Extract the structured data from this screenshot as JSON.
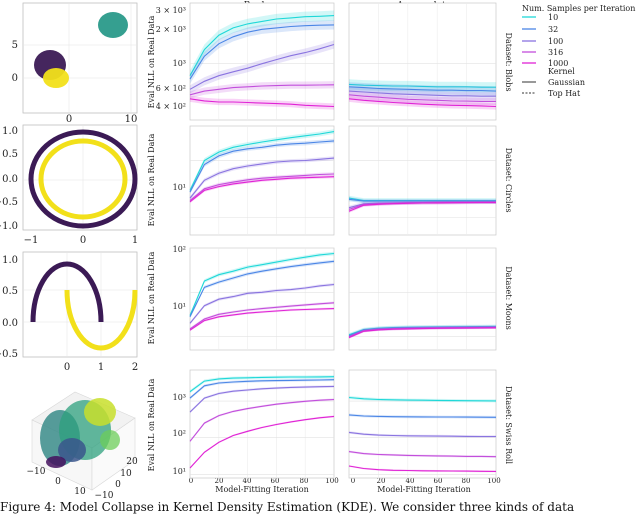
{
  "figure": {
    "caption": "Figure 4: Model Collapse in Kernel Density Estimation (KDE). We consider three kinds of data"
  },
  "legend": {
    "title_samples": "Num. Samples per Iteration",
    "title_kernel": "Kernel",
    "kernels": [
      "Gaussian",
      "Top Hat"
    ],
    "colors": [
      "#1fd8d8",
      "#4b86e6",
      "#8a74e0",
      "#c24fdc",
      "#e023d5"
    ]
  },
  "left_panels": [
    {
      "name": "blobs",
      "xticks": [
        "0",
        "10"
      ],
      "yticks": [
        "5",
        "0"
      ]
    },
    {
      "name": "circles",
      "xticks": [
        "−1",
        "0",
        "1"
      ],
      "yticks": [
        "1.0",
        "0.5",
        "0.0",
        "−0.5",
        "−1.0"
      ]
    },
    {
      "name": "moons",
      "xticks": [
        "0",
        "1",
        "2"
      ],
      "yticks": [
        "1.0",
        "0.5",
        "0.0",
        "−0.5"
      ]
    },
    {
      "name": "swiss-roll",
      "ticks3d": [
        "−10",
        "0",
        "10",
        "20",
        "10",
        "0",
        "−10"
      ]
    }
  ],
  "chart_data": [
    {
      "type": "line",
      "dataset": "Dataset: Blobs",
      "column": "Replace",
      "ylabel": "Eval NLL on Real Data",
      "xticks": [
        "0",
        "20",
        "40",
        "60",
        "80",
        "100"
      ],
      "xlim": [
        0,
        100
      ],
      "yscale": "log",
      "ylim": [
        350,
        3100
      ],
      "ytick_labels": [
        "3 × 10³",
        "2 × 10³",
        "10³",
        "6 × 10²",
        "4 × 10²"
      ],
      "x": [
        0,
        10,
        20,
        30,
        40,
        50,
        60,
        70,
        80,
        90,
        100
      ],
      "series": [
        {
          "name": "10",
          "values": [
            800,
            1300,
            1700,
            1950,
            2100,
            2200,
            2300,
            2350,
            2400,
            2420,
            2450
          ]
        },
        {
          "name": "32",
          "values": [
            750,
            1150,
            1450,
            1650,
            1800,
            1900,
            1950,
            2000,
            2030,
            2050,
            2060
          ]
        },
        {
          "name": "100",
          "values": [
            620,
            720,
            800,
            860,
            920,
            1000,
            1080,
            1160,
            1230,
            1320,
            1430
          ]
        },
        {
          "name": "316",
          "values": [
            560,
            600,
            620,
            640,
            650,
            660,
            665,
            670,
            670,
            672,
            675
          ]
        },
        {
          "name": "1000",
          "values": [
            520,
            500,
            490,
            490,
            485,
            480,
            475,
            470,
            460,
            455,
            450
          ]
        }
      ]
    },
    {
      "type": "line",
      "dataset": "Dataset: Blobs",
      "column": "Accumulate",
      "xticks": [
        "0",
        "20",
        "40",
        "60",
        "80",
        "100"
      ],
      "xlim": [
        0,
        100
      ],
      "yscale": "log",
      "ylim": [
        350,
        3100
      ],
      "x": [
        0,
        10,
        20,
        30,
        40,
        50,
        60,
        70,
        80,
        90,
        100
      ],
      "series": [
        {
          "name": "10",
          "values": [
            680,
            670,
            665,
            660,
            660,
            655,
            650,
            650,
            650,
            645,
            645
          ]
        },
        {
          "name": "32",
          "values": [
            650,
            640,
            630,
            625,
            620,
            615,
            610,
            610,
            605,
            605,
            600
          ]
        },
        {
          "name": "100",
          "values": [
            600,
            590,
            580,
            570,
            565,
            560,
            555,
            550,
            550,
            545,
            545
          ]
        },
        {
          "name": "316",
          "values": [
            560,
            545,
            535,
            525,
            515,
            510,
            505,
            500,
            498,
            495,
            495
          ]
        },
        {
          "name": "1000",
          "values": [
            520,
            505,
            495,
            485,
            478,
            470,
            465,
            460,
            458,
            455,
            450
          ]
        }
      ]
    },
    {
      "type": "line",
      "dataset": "Dataset: Circles",
      "column": "Replace",
      "ylabel": "Eval NLL on Real Data",
      "xticks": [
        "0",
        "20",
        "40",
        "60",
        "80",
        "100"
      ],
      "xlim": [
        0,
        100
      ],
      "yscale": "log",
      "ylim": [
        0.5,
        40
      ],
      "ytick_labels": [
        "10¹"
      ],
      "x": [
        0,
        10,
        20,
        30,
        40,
        50,
        60,
        70,
        80,
        90,
        100
      ],
      "series": [
        {
          "name": "10",
          "values": [
            3,
            10,
            14,
            17,
            19,
            21,
            23,
            25,
            27,
            29,
            32
          ]
        },
        {
          "name": "32",
          "values": [
            2.8,
            8.5,
            12,
            14.5,
            16,
            17,
            18.5,
            19.5,
            20,
            21,
            22
          ]
        },
        {
          "name": "100",
          "values": [
            2.2,
            4.5,
            6,
            7.2,
            8,
            8.7,
            9.4,
            9.8,
            10,
            10.5,
            11
          ]
        },
        {
          "name": "316",
          "values": [
            2,
            3.2,
            3.8,
            4.2,
            4.6,
            4.9,
            5.1,
            5.3,
            5.5,
            5.7,
            5.8
          ]
        },
        {
          "name": "1000",
          "values": [
            1.9,
            3,
            3.5,
            3.9,
            4.2,
            4.5,
            4.7,
            4.9,
            5,
            5.1,
            5.2
          ]
        }
      ]
    },
    {
      "type": "line",
      "dataset": "Dataset: Circles",
      "column": "Accumulate",
      "xticks": [
        "0",
        "20",
        "40",
        "60",
        "80",
        "100"
      ],
      "xlim": [
        0,
        100
      ],
      "yscale": "log",
      "ylim": [
        0.5,
        40
      ],
      "x": [
        0,
        10,
        20,
        30,
        40,
        50,
        60,
        70,
        80,
        90,
        100
      ],
      "series": [
        {
          "name": "10",
          "values": [
            2.2,
            2,
            2,
            2,
            2,
            2,
            2,
            2,
            2,
            2,
            2
          ]
        },
        {
          "name": "32",
          "values": [
            2.1,
            1.95,
            1.95,
            1.95,
            1.95,
            1.95,
            1.95,
            1.95,
            1.95,
            1.95,
            1.95
          ]
        },
        {
          "name": "100",
          "values": [
            1.5,
            1.75,
            1.8,
            1.82,
            1.84,
            1.85,
            1.86,
            1.87,
            1.87,
            1.88,
            1.88
          ]
        },
        {
          "name": "316",
          "values": [
            1.4,
            1.7,
            1.75,
            1.78,
            1.8,
            1.82,
            1.83,
            1.84,
            1.85,
            1.85,
            1.86
          ]
        },
        {
          "name": "1000",
          "values": [
            1.3,
            1.65,
            1.72,
            1.76,
            1.79,
            1.81,
            1.82,
            1.83,
            1.84,
            1.85,
            1.85
          ]
        }
      ]
    },
    {
      "type": "line",
      "dataset": "Dataset: Moons",
      "column": "Replace",
      "ylabel": "Eval NLL on Real Data",
      "xticks": [
        "0",
        "20",
        "40",
        "60",
        "80",
        "100"
      ],
      "xlim": [
        0,
        100
      ],
      "yscale": "log",
      "ylim": [
        0.5,
        100
      ],
      "ytick_labels": [
        "10²",
        "10¹"
      ],
      "x": [
        0,
        10,
        20,
        30,
        40,
        50,
        60,
        70,
        80,
        90,
        100
      ],
      "series": [
        {
          "name": "10",
          "values": [
            3,
            18,
            25,
            30,
            37,
            42,
            48,
            55,
            62,
            70,
            75
          ]
        },
        {
          "name": "32",
          "values": [
            2.8,
            13,
            17,
            21,
            26,
            30,
            34,
            38,
            42,
            46,
            50
          ]
        },
        {
          "name": "100",
          "values": [
            2,
            5,
            7,
            8,
            9.5,
            10,
            11,
            11.5,
            12.5,
            14,
            15
          ]
        },
        {
          "name": "316",
          "values": [
            1.5,
            2.5,
            3.2,
            3.6,
            4,
            4.3,
            4.6,
            4.9,
            5.2,
            5.5,
            5.8
          ]
        },
        {
          "name": "1000",
          "values": [
            1.4,
            2.3,
            2.8,
            3.1,
            3.4,
            3.6,
            3.8,
            4,
            4.1,
            4.2,
            4.3
          ]
        }
      ]
    },
    {
      "type": "line",
      "dataset": "Dataset: Moons",
      "column": "Accumulate",
      "xticks": [
        "0",
        "20",
        "40",
        "60",
        "80",
        "100"
      ],
      "xlim": [
        0,
        100
      ],
      "yscale": "log",
      "ylim": [
        0.5,
        100
      ],
      "x": [
        0,
        10,
        20,
        30,
        40,
        50,
        60,
        70,
        80,
        90,
        100
      ],
      "series": [
        {
          "name": "10",
          "values": [
            1.1,
            1.45,
            1.55,
            1.6,
            1.63,
            1.65,
            1.66,
            1.67,
            1.68,
            1.69,
            1.7
          ]
        },
        {
          "name": "32",
          "values": [
            1.05,
            1.42,
            1.52,
            1.57,
            1.6,
            1.62,
            1.63,
            1.64,
            1.65,
            1.66,
            1.67
          ]
        },
        {
          "name": "100",
          "values": [
            1,
            1.38,
            1.48,
            1.53,
            1.56,
            1.58,
            1.6,
            1.61,
            1.62,
            1.63,
            1.64
          ]
        },
        {
          "name": "316",
          "values": [
            0.98,
            1.35,
            1.45,
            1.5,
            1.53,
            1.55,
            1.57,
            1.58,
            1.59,
            1.6,
            1.61
          ]
        },
        {
          "name": "1000",
          "values": [
            0.95,
            1.32,
            1.42,
            1.47,
            1.5,
            1.52,
            1.54,
            1.55,
            1.56,
            1.57,
            1.58
          ]
        }
      ]
    },
    {
      "type": "line",
      "dataset": "Dataset: Swiss Roll",
      "column": "Replace",
      "ylabel": "Eval NLL on Real Data",
      "xlabel": "Model-Fitting Iteration",
      "xticks": [
        "0",
        "20",
        "40",
        "60",
        "80",
        "100"
      ],
      "xlim": [
        0,
        100
      ],
      "yscale": "log",
      "ylim": [
        8,
        7000
      ],
      "ytick_labels": [
        "10³",
        "10²",
        "10¹"
      ],
      "x": [
        0,
        10,
        20,
        30,
        40,
        50,
        60,
        70,
        80,
        90,
        100
      ],
      "series": [
        {
          "name": "10",
          "values": [
            1800,
            3500,
            4000,
            4200,
            4300,
            4400,
            4450,
            4500,
            4500,
            4550,
            4600
          ]
        },
        {
          "name": "32",
          "values": [
            1200,
            2600,
            3100,
            3300,
            3450,
            3550,
            3600,
            3650,
            3700,
            3750,
            3800
          ]
        },
        {
          "name": "100",
          "values": [
            500,
            1200,
            1600,
            1850,
            2000,
            2150,
            2250,
            2350,
            2400,
            2450,
            2500
          ]
        },
        {
          "name": "316",
          "values": [
            80,
            250,
            400,
            520,
            620,
            720,
            820,
            900,
            980,
            1050,
            1100
          ]
        },
        {
          "name": "1000",
          "values": [
            15,
            40,
            75,
            115,
            150,
            190,
            230,
            270,
            310,
            350,
            380
          ]
        }
      ]
    },
    {
      "type": "line",
      "dataset": "Dataset: Swiss Roll",
      "column": "Accumulate",
      "xlabel": "Model-Fitting Iteration",
      "xticks": [
        "0",
        "20",
        "40",
        "60",
        "80",
        "100"
      ],
      "xlim": [
        0,
        100
      ],
      "yscale": "log",
      "ylim": [
        8,
        7000
      ],
      "x": [
        0,
        10,
        20,
        30,
        40,
        50,
        60,
        70,
        80,
        90,
        100
      ],
      "series": [
        {
          "name": "10",
          "values": [
            1250,
            1150,
            1100,
            1080,
            1060,
            1050,
            1040,
            1030,
            1020,
            1015,
            1010
          ]
        },
        {
          "name": "32",
          "values": [
            420,
            390,
            380,
            375,
            372,
            370,
            368,
            366,
            364,
            362,
            360
          ]
        },
        {
          "name": "100",
          "values": [
            140,
            125,
            118,
            115,
            113,
            112,
            111,
            110,
            109,
            108,
            108
          ]
        },
        {
          "name": "316",
          "values": [
            42,
            37,
            35,
            34,
            33,
            32.5,
            32,
            31.5,
            31,
            31,
            30.5
          ]
        },
        {
          "name": "1000",
          "values": [
            17,
            14.5,
            13.5,
            13,
            12.8,
            12.6,
            12.5,
            12.4,
            12.3,
            12.2,
            12.1
          ]
        }
      ]
    }
  ]
}
